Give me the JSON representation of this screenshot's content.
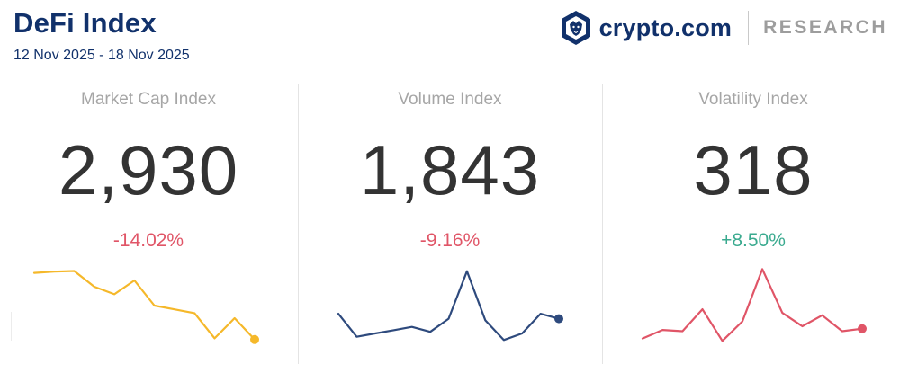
{
  "header": {
    "title": "DeFi Index",
    "date_range": "12 Nov 2025 - 18 Nov 2025"
  },
  "brand": {
    "name": "crypto.com",
    "section": "RESEARCH",
    "logo_icon": "crypto-com-lion-shield-icon",
    "color": "#11316b"
  },
  "panels": [
    {
      "label": "Market Cap Index",
      "value": "2,930",
      "change": "-14.02%",
      "change_color": "#e05567",
      "line_color": "#f5b82a"
    },
    {
      "label": "Volume Index",
      "value": "1,843",
      "change": "-9.16%",
      "change_color": "#e05567",
      "line_color": "#2e4a7d"
    },
    {
      "label": "Volatility Index",
      "value": "318",
      "change": "+8.50%",
      "change_color": "#3aaa8f",
      "line_color": "#e05567"
    }
  ],
  "chart_data": [
    {
      "type": "line",
      "title": "Market Cap Index",
      "series": [
        {
          "values": [
            96,
            97,
            97.5,
            85,
            79,
            90,
            70,
            67,
            64,
            44,
            60,
            43
          ]
        }
      ],
      "ylim": [
        40,
        100
      ],
      "grid": false
    },
    {
      "type": "line",
      "title": "Volume Index",
      "series": [
        {
          "values": [
            56,
            42,
            44,
            46,
            48,
            45,
            53,
            82,
            52,
            40,
            44,
            56,
            53
          ]
        }
      ],
      "ylim": [
        38,
        84
      ],
      "grid": false
    },
    {
      "type": "line",
      "title": "Volatility Index",
      "series": [
        {
          "values": [
            40,
            47,
            46,
            64,
            38,
            54,
            97,
            61,
            50,
            59,
            46,
            48
          ]
        }
      ],
      "ylim": [
        36,
        98
      ],
      "grid": false
    }
  ]
}
